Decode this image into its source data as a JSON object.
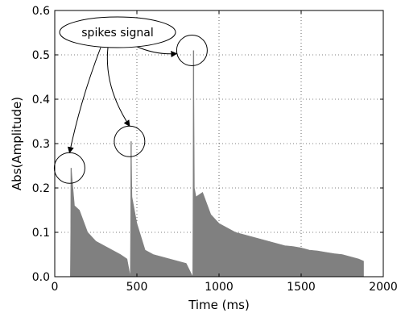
{
  "chart_data": {
    "type": "area",
    "title": "",
    "xlabel": "Time (ms)",
    "ylabel": "Abs(Amplitude)",
    "xlim": [
      0,
      2000
    ],
    "ylim": [
      0,
      0.6
    ],
    "x_ticks": [
      "0",
      "500",
      "1000",
      "1500",
      "2000"
    ],
    "y_ticks": [
      "0.0",
      "0.1",
      "0.2",
      "0.3",
      "0.4",
      "0.5",
      "0.6"
    ],
    "grid": true,
    "series_color": "#808080",
    "series": [
      {
        "x": [
          95,
          100,
          120,
          150,
          200,
          250,
          300,
          350,
          400,
          440,
          460,
          465,
          470,
          480,
          500,
          550,
          600,
          650,
          700,
          750,
          800,
          840,
          845,
          850,
          860,
          900,
          950,
          1000,
          1050,
          1100,
          1150,
          1200,
          1250,
          1300,
          1350,
          1400,
          1450,
          1500,
          1550,
          1600,
          1650,
          1700,
          1750,
          1800,
          1850,
          1880
        ],
        "y": [
          0.0,
          0.245,
          0.16,
          0.15,
          0.1,
          0.08,
          0.07,
          0.06,
          0.05,
          0.04,
          0.0,
          0.305,
          0.18,
          0.16,
          0.12,
          0.06,
          0.05,
          0.045,
          0.04,
          0.035,
          0.03,
          0.0,
          0.51,
          0.2,
          0.18,
          0.19,
          0.14,
          0.12,
          0.11,
          0.1,
          0.095,
          0.09,
          0.085,
          0.08,
          0.075,
          0.07,
          0.068,
          0.065,
          0.06,
          0.058,
          0.055,
          0.052,
          0.05,
          0.045,
          0.04,
          0.035
        ]
      }
    ],
    "spikes": [
      {
        "x": 100,
        "y": 0.245
      },
      {
        "x": 465,
        "y": 0.305
      },
      {
        "x": 845,
        "y": 0.51
      }
    ],
    "annotation": {
      "text": "spikes signal"
    }
  }
}
